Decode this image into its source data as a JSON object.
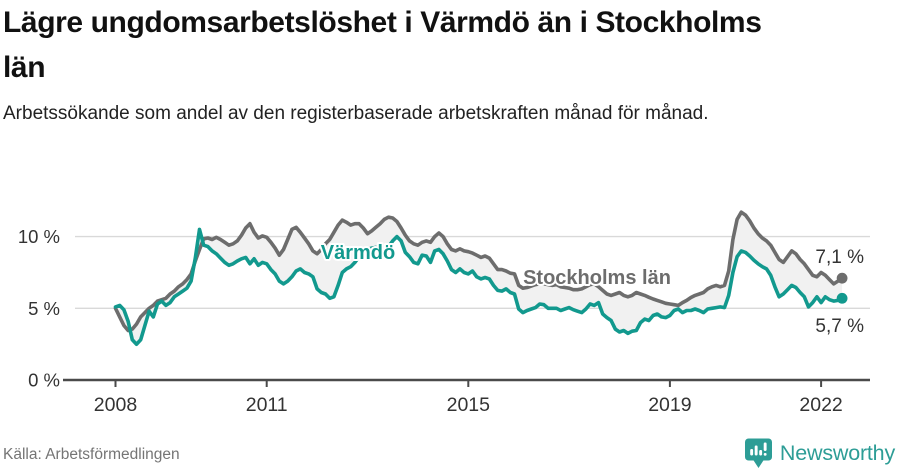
{
  "header": {
    "title": "Lägre ungdomsarbetslöshet i Värmdö än i Stockholms län",
    "subtitle": "Arbetssökande som andel av den registerbaserade arbetskraften månad för månad."
  },
  "chart_data": {
    "type": "line",
    "title": "Lägre ungdomsarbetslöshet i Värmdö än i Stockholms län",
    "unit": "%",
    "frequency": "monthly",
    "start": {
      "year": 2008,
      "month": 1
    },
    "end": {
      "year": 2022,
      "month": 6
    },
    "ylim": [
      0,
      12
    ],
    "y_ticks": [
      0,
      5,
      10
    ],
    "x_ticks": [
      2008,
      2011,
      2015,
      2019,
      2022
    ],
    "grid": "horizontal",
    "legend_position": "inline-labels",
    "fill_between_series": true,
    "series": [
      {
        "name": "Stockholms län",
        "color": "#6d6d6d",
        "end_label": "7,1 %",
        "end_value": 7.1,
        "values": [
          5.0,
          4.4,
          3.8,
          3.45,
          3.55,
          3.9,
          4.4,
          4.7,
          5.0,
          5.2,
          5.5,
          5.6,
          5.7,
          6.0,
          6.2,
          6.5,
          6.7,
          7.0,
          7.4,
          8.3,
          9.1,
          9.85,
          9.9,
          9.8,
          9.95,
          9.8,
          9.6,
          9.4,
          9.5,
          9.7,
          10.1,
          10.6,
          10.9,
          10.3,
          9.9,
          10.05,
          9.95,
          9.6,
          9.2,
          8.7,
          9.1,
          9.8,
          10.5,
          10.65,
          10.3,
          9.9,
          9.5,
          9.0,
          8.8,
          9.1,
          9.5,
          9.8,
          10.3,
          10.8,
          11.15,
          11.0,
          10.8,
          10.9,
          10.9,
          10.6,
          10.2,
          10.4,
          10.65,
          10.9,
          11.2,
          11.35,
          11.3,
          11.05,
          10.6,
          10.1,
          9.7,
          9.5,
          9.4,
          9.6,
          9.7,
          9.6,
          10.0,
          10.25,
          10.0,
          9.5,
          9.1,
          9.0,
          9.15,
          9.0,
          8.95,
          8.85,
          8.7,
          8.55,
          8.65,
          8.5,
          8.1,
          7.7,
          7.7,
          7.6,
          7.45,
          7.4,
          6.6,
          6.4,
          6.45,
          6.55,
          6.65,
          6.7,
          6.7,
          6.65,
          6.6,
          6.65,
          6.5,
          6.45,
          6.4,
          6.3,
          6.3,
          6.35,
          6.5,
          6.65,
          6.7,
          6.5,
          6.25,
          6.0,
          5.9,
          6.0,
          6.1,
          5.9,
          5.8,
          5.9,
          6.1,
          6.0,
          5.9,
          5.77,
          5.65,
          5.55,
          5.45,
          5.35,
          5.3,
          5.25,
          5.2,
          5.4,
          5.55,
          5.75,
          5.9,
          6.0,
          6.1,
          6.35,
          6.5,
          6.6,
          6.5,
          6.6,
          7.6,
          9.8,
          11.2,
          11.7,
          11.5,
          11.1,
          10.6,
          10.2,
          9.9,
          9.7,
          9.4,
          8.9,
          8.4,
          8.2,
          8.6,
          9.0,
          8.8,
          8.4,
          8.1,
          7.7,
          7.3,
          7.2,
          7.5,
          7.3,
          7.0,
          6.7,
          6.9,
          7.1
        ]
      },
      {
        "name": "Värmdö",
        "color": "#12998e",
        "end_label": "5,7 %",
        "end_value": 5.7,
        "values": [
          5.1,
          5.2,
          4.9,
          4.1,
          2.8,
          2.5,
          2.8,
          3.8,
          4.8,
          4.4,
          5.3,
          5.5,
          5.2,
          5.4,
          5.8,
          6.0,
          6.2,
          6.4,
          6.9,
          8.5,
          10.5,
          9.4,
          9.3,
          9.0,
          8.8,
          8.5,
          8.2,
          8.0,
          8.1,
          8.3,
          8.45,
          8.55,
          8.1,
          8.45,
          8.0,
          8.2,
          8.1,
          7.7,
          7.4,
          6.9,
          6.7,
          6.9,
          7.2,
          7.6,
          7.75,
          7.5,
          7.4,
          7.2,
          6.35,
          6.1,
          6.0,
          5.7,
          5.8,
          6.6,
          7.5,
          7.75,
          7.9,
          8.2,
          8.6,
          8.9,
          9.1,
          9.2,
          9.25,
          9.0,
          8.9,
          9.3,
          9.7,
          10.0,
          9.7,
          8.9,
          8.6,
          8.2,
          8.1,
          8.7,
          8.65,
          8.2,
          9.0,
          9.1,
          8.8,
          8.3,
          7.7,
          7.5,
          7.75,
          7.5,
          7.4,
          7.6,
          7.2,
          7.05,
          7.15,
          7.05,
          6.6,
          6.25,
          6.2,
          6.35,
          6.1,
          6.0,
          4.95,
          4.7,
          4.85,
          4.95,
          5.05,
          5.3,
          5.25,
          5.0,
          5.0,
          5.0,
          4.85,
          4.95,
          5.05,
          4.9,
          4.8,
          4.7,
          4.95,
          5.3,
          5.2,
          5.4,
          4.6,
          4.35,
          4.15,
          3.55,
          3.35,
          3.45,
          3.25,
          3.4,
          3.45,
          4.0,
          4.25,
          4.15,
          4.5,
          4.6,
          4.4,
          4.35,
          4.5,
          4.85,
          4.95,
          4.7,
          4.85,
          4.85,
          4.95,
          4.85,
          4.7,
          4.95,
          5.0,
          5.05,
          5.1,
          5.05,
          5.9,
          7.5,
          8.6,
          9.0,
          8.9,
          8.65,
          8.35,
          8.1,
          7.9,
          7.75,
          7.3,
          6.5,
          5.8,
          6.0,
          6.3,
          6.6,
          6.45,
          6.1,
          5.8,
          5.1,
          5.4,
          5.8,
          5.4,
          5.8,
          5.6,
          5.5,
          5.55,
          5.7
        ]
      }
    ]
  },
  "labels": {
    "varmdo": "Värmdö",
    "stockholm": "Stockholms län",
    "end_stockholm": "7,1 %",
    "end_varmdo": "5,7 %"
  },
  "colors": {
    "teal": "#12998e",
    "gray_line": "#6d6d6d",
    "fill_between": "#f1f1f1",
    "gridline": "#d9d9d9",
    "axis": "#4a4a4a",
    "tick_text": "#333333",
    "source_text": "#757575",
    "brand_teal": "#2d9d96"
  },
  "footer": {
    "source": "Källa: Arbetsförmedlingen",
    "brand": "Newsworthy"
  }
}
